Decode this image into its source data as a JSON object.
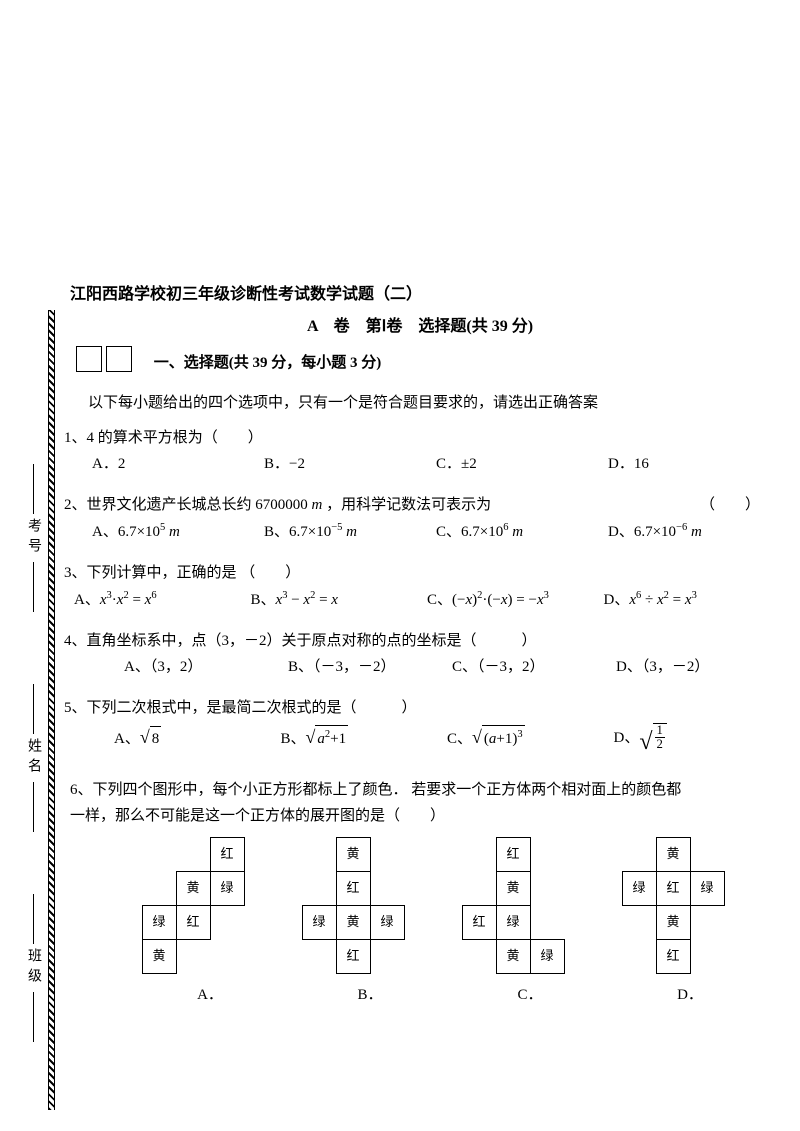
{
  "side": {
    "exam_no": "考号",
    "name": "姓名",
    "class": "班级"
  },
  "header": {
    "title": "江阳西路学校初三年级诊断性考试数学试题（二）",
    "subtitle": "A　卷　第Ⅰ卷　选择题(共 39 分)",
    "section": "一、选择题(共 39 分，每小题 3 分)",
    "instruction": "以下每小题给出的四个选项中，只有一个是符合题目要求的，请选出正确答案"
  },
  "q1": {
    "stem": "1、4 的算术平方根为（　　）",
    "a": "A．2",
    "b": "B．−2",
    "c": "C．±2",
    "d": "D．16"
  },
  "q2": {
    "stem_pre": "2、世界文化遗产长城总长约 6700000 ",
    "stem_post": " ，用科学记数法可表示为",
    "paren": "（　　）",
    "a_pre": "A、6.7×10",
    "a_sup": "5",
    "b_pre": "B、6.7×10",
    "b_sup": "−5",
    "c_pre": "C、6.7×10",
    "c_sup": "6",
    "d_pre": "D、6.7×10",
    "d_sup": "−6",
    "unit": "m"
  },
  "q3": {
    "stem": "3、下列计算中，正确的是 （　　）",
    "a": "A、",
    "b": "B、",
    "c": "C、",
    "d": "D、"
  },
  "q4": {
    "stem": "4、直角坐标系中，点（3，－2）关于原点对称的点的坐标是（　　　）",
    "a": "A、（3，2）",
    "b": "B、（－3，－2）",
    "c": "C、（－3，2）",
    "d": "D、（3，－2）"
  },
  "q5": {
    "stem": "5、下列二次根式中，是最简二次根式的是（　　　）",
    "a": "A、",
    "b": "B、",
    "c": "C、",
    "d": "D、"
  },
  "q6": {
    "line1": "6、下列四个图形中，每个小正方形都标上了颜色．  若要求一个正方体两个相对面上的颜色都",
    "line2": "一样，那么不可能是这一个正方体的展开图的是（　　）",
    "labels": {
      "a": "A．",
      "b": "B．",
      "c": "C．",
      "d": "D．"
    },
    "colors": {
      "red": "红",
      "yellow": "黄",
      "green": "绿"
    },
    "nets": {
      "A": [
        [
          "",
          "",
          "红",
          ""
        ],
        [
          "",
          "黄",
          "绿",
          ""
        ],
        [
          "绿",
          "红",
          "",
          ""
        ],
        [
          "黄",
          "",
          "",
          ""
        ]
      ],
      "B": [
        [
          "",
          "黄",
          "",
          ""
        ],
        [
          "",
          "红",
          "",
          ""
        ],
        [
          "绿",
          "黄",
          "绿",
          ""
        ],
        [
          "",
          "红",
          "",
          ""
        ]
      ],
      "C": [
        [
          "",
          "红",
          "",
          ""
        ],
        [
          "",
          "黄",
          "",
          ""
        ],
        [
          "红",
          "绿",
          "",
          ""
        ],
        [
          "",
          "黄",
          "绿",
          ""
        ]
      ],
      "D": [
        [
          "",
          "黄",
          "",
          ""
        ],
        [
          "绿",
          "红",
          "绿",
          ""
        ],
        [
          "",
          "黄",
          "",
          ""
        ],
        [
          "",
          "红",
          "",
          ""
        ]
      ]
    }
  }
}
